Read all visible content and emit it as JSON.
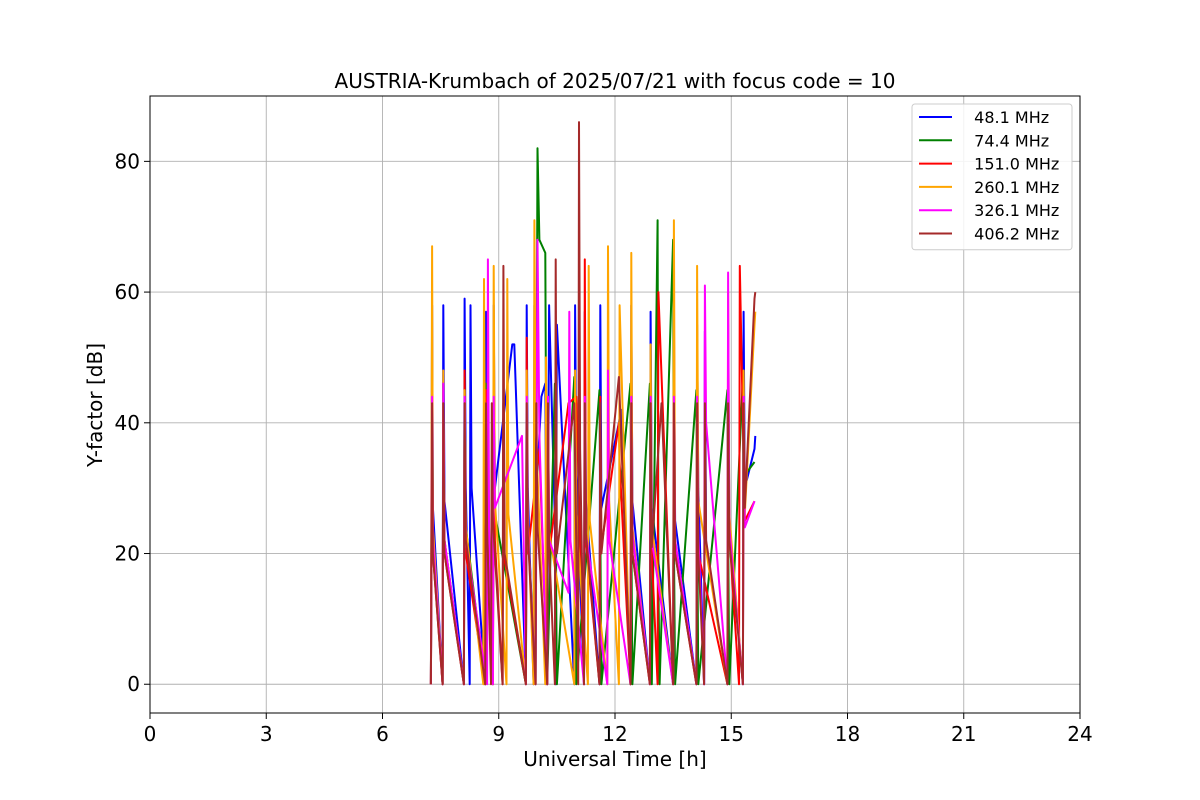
{
  "chart_data": {
    "type": "line",
    "title": "AUSTRIA-Krumbach of 2025/07/21 with focus code = 10",
    "xlabel": "Universal Time [h]",
    "ylabel": "Y-factor [dB]",
    "xlim": [
      0,
      24
    ],
    "ylim": [
      -4.4,
      90
    ],
    "xticks": [
      0,
      3,
      6,
      9,
      12,
      15,
      18,
      21,
      24
    ],
    "yticks": [
      0,
      20,
      40,
      60,
      80
    ],
    "grid": true,
    "legend_position": "top-right",
    "series": [
      {
        "name": "  48.1 MHz",
        "color": "#0000ff",
        "x": [
          7.25,
          7.28,
          7.3,
          7.55,
          7.57,
          7.6,
          8.1,
          8.12,
          8.15,
          8.25,
          8.27,
          8.3,
          8.65,
          8.67,
          8.7,
          8.85,
          8.87,
          8.9,
          9.35,
          9.4,
          9.7,
          9.72,
          9.75,
          9.9,
          9.92,
          9.95,
          10.1,
          10.2,
          10.25,
          10.3,
          10.45,
          10.47,
          10.5,
          10.95,
          10.97,
          11.0,
          11.2,
          11.22,
          11.25,
          11.6,
          11.62,
          11.65,
          12.1,
          12.15,
          12.4,
          12.42,
          12.45,
          12.9,
          12.92,
          12.95,
          13.5,
          13.52,
          13.55,
          14.1,
          14.12,
          14.15,
          14.3,
          14.32,
          14.35,
          14.9,
          14.92,
          14.95,
          15.3,
          15.32,
          15.35,
          15.6,
          15.62
        ],
        "y": [
          0,
          58,
          27,
          0,
          58,
          28,
          0,
          59,
          30,
          0,
          58,
          30,
          0,
          57,
          32,
          0,
          58,
          30,
          52,
          52,
          0,
          58,
          30,
          0,
          58,
          27,
          44,
          46,
          0,
          58,
          25,
          0,
          55,
          0,
          58,
          32,
          0,
          57,
          28,
          0,
          58,
          27,
          40,
          42,
          0,
          58,
          28,
          0,
          57,
          27,
          0,
          56,
          25,
          0,
          55,
          30,
          0,
          54,
          21,
          0,
          55,
          25,
          0,
          57,
          30,
          36,
          38
        ]
      },
      {
        "name": "  74.4 MHz",
        "color": "#008000",
        "x": [
          7.25,
          7.28,
          7.3,
          7.55,
          7.57,
          7.6,
          8.1,
          8.12,
          8.15,
          8.65,
          8.67,
          8.7,
          8.85,
          8.87,
          8.9,
          9.7,
          9.72,
          9.75,
          9.95,
          10.0,
          10.05,
          10.2,
          10.25,
          10.45,
          10.47,
          10.5,
          10.95,
          10.97,
          11.0,
          11.6,
          11.62,
          11.65,
          12.4,
          12.42,
          12.45,
          12.9,
          12.92,
          12.95,
          13.1,
          13.12,
          13.15,
          13.5,
          13.52,
          13.55,
          14.1,
          14.12,
          14.15,
          14.9,
          14.92,
          14.95,
          15.3,
          15.32,
          15.35,
          15.6
        ],
        "y": [
          0,
          46,
          23,
          0,
          46,
          22,
          0,
          47,
          24,
          0,
          46,
          26,
          0,
          48,
          26,
          0,
          46,
          25,
          0,
          82,
          68,
          66,
          0,
          46,
          22,
          0,
          47,
          25,
          0,
          45,
          24,
          0,
          46,
          24,
          0,
          46,
          23,
          0,
          71,
          15,
          0,
          68,
          22,
          0,
          45,
          26,
          0,
          45,
          24,
          0,
          47,
          27,
          32,
          34
        ]
      },
      {
        "name": "  151.0 MHz",
        "color": "#ff0000",
        "x": [
          7.25,
          7.28,
          7.3,
          7.55,
          7.57,
          7.6,
          8.1,
          8.12,
          8.15,
          8.65,
          8.67,
          8.7,
          8.85,
          8.87,
          8.9,
          9.1,
          9.12,
          9.15,
          9.7,
          9.72,
          9.75,
          10.05,
          10.25,
          10.27,
          10.3,
          10.8,
          11.0,
          11.2,
          11.22,
          11.25,
          11.6,
          11.62,
          11.65,
          12.1,
          12.12,
          12.4,
          12.42,
          12.45,
          12.9,
          12.92,
          12.95,
          13.1,
          13.12,
          13.5,
          13.52,
          13.55,
          14.1,
          14.12,
          14.15,
          14.9,
          14.92,
          14.95,
          15.2,
          15.22,
          15.35,
          15.6
        ],
        "y": [
          0,
          43,
          20,
          0,
          43,
          20,
          0,
          48,
          20,
          0,
          45,
          24,
          0,
          44,
          22,
          0,
          43,
          19,
          0,
          53,
          20,
          36,
          0,
          44,
          20,
          43,
          44,
          0,
          65,
          22,
          0,
          44,
          21,
          40,
          34,
          0,
          44,
          20,
          0,
          44,
          20,
          0,
          60,
          0,
          44,
          20,
          0,
          44,
          20,
          0,
          44,
          23,
          0,
          64,
          25,
          28
        ]
      },
      {
        "name": "  260.1 MHz",
        "color": "#ffa500",
        "x": [
          7.25,
          7.28,
          7.3,
          7.55,
          7.57,
          7.6,
          8.1,
          8.12,
          8.15,
          8.6,
          8.62,
          8.65,
          8.85,
          8.87,
          8.9,
          9.2,
          9.22,
          9.25,
          9.7,
          9.72,
          9.75,
          9.9,
          9.92,
          9.95,
          10.2,
          10.22,
          10.25,
          10.95,
          10.97,
          11.0,
          11.3,
          11.32,
          11.35,
          11.8,
          11.82,
          11.85,
          12.1,
          12.12,
          12.4,
          12.42,
          12.45,
          12.9,
          12.92,
          12.95,
          13.5,
          13.52,
          13.55,
          14.1,
          14.12,
          14.15,
          14.9,
          14.92,
          14.95,
          15.3,
          15.32,
          15.35,
          15.6,
          15.62
        ],
        "y": [
          0,
          67,
          24,
          0,
          48,
          22,
          0,
          45,
          24,
          0,
          62,
          26,
          0,
          64,
          28,
          0,
          62,
          26,
          0,
          48,
          26,
          0,
          71,
          40,
          0,
          50,
          25,
          0,
          48,
          26,
          0,
          64,
          25,
          0,
          67,
          28,
          0,
          58,
          0,
          66,
          24,
          0,
          52,
          24,
          0,
          71,
          22,
          0,
          64,
          28,
          0,
          60,
          26,
          0,
          48,
          26,
          55,
          57
        ]
      },
      {
        "name": "  326.1 MHz",
        "color": "#ff00ff",
        "x": [
          7.25,
          7.28,
          7.3,
          7.55,
          7.57,
          7.6,
          8.1,
          8.12,
          8.15,
          8.7,
          8.72,
          8.75,
          8.85,
          8.87,
          8.9,
          9.6,
          9.7,
          9.72,
          9.75,
          9.95,
          10.0,
          10.05,
          10.25,
          10.27,
          10.3,
          10.8,
          10.82,
          10.85,
          11.2,
          11.22,
          11.25,
          11.8,
          11.82,
          11.85,
          12.4,
          12.42,
          12.45,
          12.9,
          12.92,
          12.95,
          13.5,
          13.52,
          13.55,
          14.1,
          14.12,
          14.15,
          14.3,
          14.32,
          14.35,
          14.9,
          14.92,
          14.95,
          15.3,
          15.32,
          15.35,
          15.6
        ],
        "y": [
          0,
          44,
          22,
          0,
          46,
          22,
          0,
          44,
          22,
          0,
          65,
          24,
          0,
          44,
          27,
          38,
          0,
          44,
          24,
          0,
          68,
          38,
          0,
          44,
          22,
          14,
          57,
          22,
          0,
          44,
          23,
          0,
          48,
          22,
          0,
          44,
          23,
          0,
          44,
          22,
          0,
          44,
          22,
          0,
          44,
          23,
          0,
          61,
          40,
          0,
          63,
          24,
          0,
          44,
          24,
          28
        ]
      },
      {
        "name": "  406.2 MHz",
        "color": "#a52a2a",
        "x": [
          7.25,
          7.28,
          7.3,
          7.55,
          7.57,
          7.6,
          8.1,
          8.12,
          8.15,
          8.65,
          8.67,
          8.7,
          8.8,
          8.82,
          8.85,
          9.1,
          9.12,
          9.15,
          9.7,
          9.72,
          9.75,
          9.95,
          9.97,
          10.0,
          10.25,
          10.27,
          10.3,
          10.45,
          10.47,
          10.5,
          10.95,
          11.05,
          11.07,
          11.1,
          11.2,
          11.22,
          11.25,
          11.6,
          11.62,
          11.65,
          12.1,
          12.4,
          12.42,
          12.45,
          12.9,
          12.92,
          12.95,
          13.2,
          13.5,
          13.52,
          13.55,
          14.1,
          14.12,
          14.15,
          14.3,
          14.32,
          14.35,
          14.9,
          14.92,
          14.95,
          15.3,
          15.32,
          15.35,
          15.6,
          15.62
        ],
        "y": [
          0,
          43,
          20,
          0,
          43,
          20,
          0,
          43,
          22,
          0,
          43,
          24,
          0,
          43,
          25,
          0,
          64,
          20,
          0,
          43,
          23,
          0,
          43,
          24,
          0,
          43,
          21,
          0,
          65,
          20,
          43,
          0,
          86,
          36,
          0,
          43,
          23,
          0,
          43,
          20,
          47,
          0,
          43,
          20,
          0,
          43,
          21,
          43,
          0,
          43,
          20,
          0,
          43,
          20,
          0,
          43,
          22,
          0,
          43,
          22,
          0,
          43,
          27,
          59,
          60
        ]
      }
    ]
  }
}
